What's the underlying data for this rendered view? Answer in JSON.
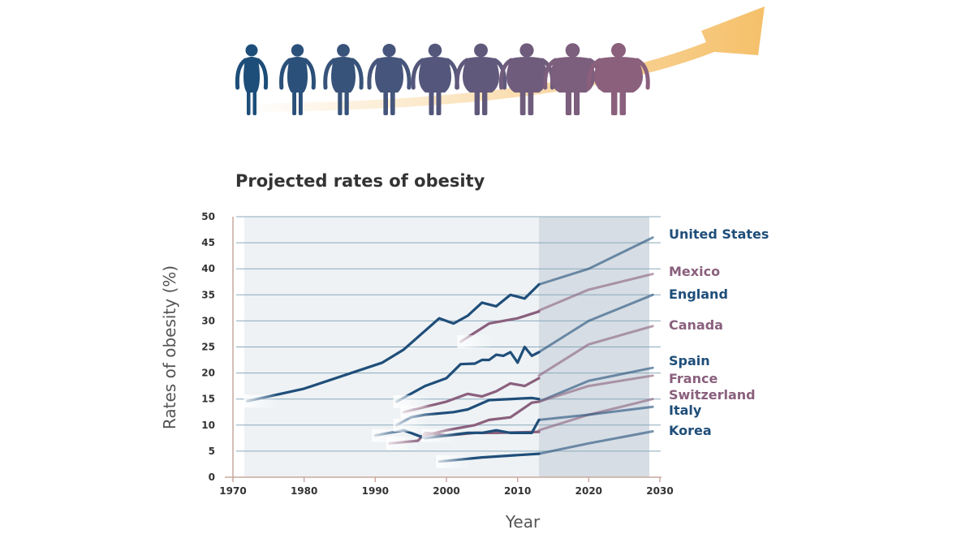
{
  "chart_data": {
    "type": "line",
    "title": "Projected rates of obesity",
    "xlabel": "Year",
    "ylabel": "Rates of obesity (%)",
    "xlim": [
      1970,
      2030
    ],
    "ylim": [
      0,
      50
    ],
    "xticks": [
      1970,
      1980,
      1990,
      2000,
      2010,
      2020,
      2030
    ],
    "yticks": [
      0,
      5,
      10,
      15,
      20,
      25,
      30,
      35,
      40,
      45,
      50
    ],
    "projection_start": 2013,
    "grid": "horizontal",
    "series": [
      {
        "name": "United States",
        "color": "#1f4e79",
        "historical": [
          [
            1972,
            14.6
          ],
          [
            1980,
            17
          ],
          [
            1991,
            22
          ],
          [
            1994,
            24.5
          ],
          [
            1999,
            30.5
          ],
          [
            2001,
            29.5
          ],
          [
            2003,
            31
          ],
          [
            2005,
            33.5
          ],
          [
            2007,
            32.8
          ],
          [
            2009,
            35
          ],
          [
            2011,
            34.3
          ],
          [
            2013,
            37
          ]
        ],
        "projected": [
          [
            2013,
            37
          ],
          [
            2020,
            40
          ],
          [
            2029,
            46
          ]
        ]
      },
      {
        "name": "Mexico",
        "color": "#8a607d",
        "historical": [
          [
            2002,
            26
          ],
          [
            2006,
            29.5
          ],
          [
            2010,
            30.5
          ],
          [
            2013,
            31.8
          ]
        ],
        "projected": [
          [
            2013,
            32
          ],
          [
            2020,
            36
          ],
          [
            2029,
            39
          ]
        ]
      },
      {
        "name": "England",
        "color": "#1f4e79",
        "historical": [
          [
            1993,
            14.5
          ],
          [
            1997,
            17.5
          ],
          [
            2000,
            19
          ],
          [
            2002,
            21.7
          ],
          [
            2004,
            21.8
          ],
          [
            2005,
            22.5
          ],
          [
            2006,
            22.5
          ],
          [
            2007,
            23.5
          ],
          [
            2008,
            23.3
          ],
          [
            2009,
            24
          ],
          [
            2010,
            22
          ],
          [
            2011,
            25
          ],
          [
            2012,
            23.3
          ],
          [
            2013,
            24
          ]
        ],
        "projected": [
          [
            2013,
            24
          ],
          [
            2020,
            30
          ],
          [
            2029,
            35
          ]
        ]
      },
      {
        "name": "Canada",
        "color": "#8a607d",
        "historical": [
          [
            1994,
            12.5
          ],
          [
            2000,
            14.5
          ],
          [
            2003,
            16
          ],
          [
            2005,
            15.5
          ],
          [
            2007,
            16.5
          ],
          [
            2009,
            18
          ],
          [
            2011,
            17.5
          ],
          [
            2013,
            19
          ]
        ],
        "projected": [
          [
            2013,
            19.5
          ],
          [
            2020,
            25.5
          ],
          [
            2029,
            29
          ]
        ]
      },
      {
        "name": "Spain",
        "color": "#1f4e79",
        "historical": [
          [
            1993,
            10
          ],
          [
            1995,
            11.5
          ],
          [
            1997,
            12
          ],
          [
            2001,
            12.5
          ],
          [
            2003,
            13
          ],
          [
            2006,
            14.8
          ],
          [
            2012,
            15.2
          ],
          [
            2013,
            15
          ]
        ],
        "projected": [
          [
            2013,
            14.5
          ],
          [
            2020,
            18.5
          ],
          [
            2029,
            21
          ]
        ]
      },
      {
        "name": "France",
        "color": "#8a607d",
        "historical": [
          [
            1997,
            8
          ],
          [
            2000,
            9
          ],
          [
            2002,
            9.5
          ],
          [
            2004,
            10
          ],
          [
            2006,
            11
          ],
          [
            2009,
            11.5
          ],
          [
            2012,
            14.3
          ],
          [
            2013,
            14.5
          ]
        ],
        "projected": [
          [
            2013,
            14.5
          ],
          [
            2020,
            17.5
          ],
          [
            2029,
            19.5
          ]
        ]
      },
      {
        "name": "Switzerland",
        "color": "#8a607d",
        "historical": [
          [
            1992,
            6.5
          ],
          [
            1996,
            7
          ],
          [
            1997,
            8.5
          ],
          [
            2000,
            8
          ],
          [
            2004,
            8.5
          ],
          [
            2007,
            8.5
          ],
          [
            2013,
            8.7
          ]
        ],
        "projected": [
          [
            2013,
            9
          ],
          [
            2020,
            12
          ],
          [
            2029,
            15
          ]
        ]
      },
      {
        "name": "Italy",
        "color": "#1f4e79",
        "historical": [
          [
            1990,
            8
          ],
          [
            1994,
            9
          ],
          [
            1997,
            7.5
          ],
          [
            2003,
            8.5
          ],
          [
            2005,
            8.5
          ],
          [
            2007,
            9
          ],
          [
            2009,
            8.5
          ],
          [
            2012,
            8.5
          ],
          [
            2013,
            11
          ]
        ],
        "projected": [
          [
            2013,
            11
          ],
          [
            2020,
            12
          ],
          [
            2029,
            13.5
          ]
        ]
      },
      {
        "name": "Korea",
        "color": "#1f4e79",
        "historical": [
          [
            1999,
            3
          ],
          [
            2005,
            3.8
          ],
          [
            2013,
            4.5
          ]
        ],
        "projected": [
          [
            2013,
            4.5
          ],
          [
            2020,
            6.5
          ],
          [
            2029,
            8.8
          ]
        ]
      }
    ]
  },
  "header": {
    "figure_count": 9,
    "arrow_color": "#f5c06a"
  },
  "colors": {
    "plot_bg": "#eef2f5",
    "projection_bg": "#d6dde4",
    "grid": "#8aaabb",
    "axis": "#c9a89f",
    "label_blue": "#1f4e79",
    "label_purple": "#8a607d"
  }
}
